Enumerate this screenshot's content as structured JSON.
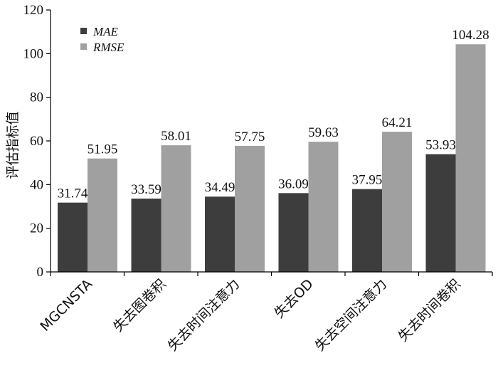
{
  "chart_data": {
    "type": "bar",
    "categories": [
      "MGCNSTA",
      "失去图卷积",
      "失去时间注意力",
      "失去OD",
      "失去空间注意力",
      "失去时间卷积"
    ],
    "series": [
      {
        "name": "MAE",
        "color": "#3d3d3d",
        "values": [
          31.74,
          33.59,
          34.49,
          36.09,
          37.95,
          53.93
        ]
      },
      {
        "name": "RMSE",
        "color": "#a0a0a0",
        "values": [
          51.95,
          58.01,
          57.75,
          59.63,
          64.21,
          104.28
        ]
      }
    ],
    "value_labels": [
      [
        "31.74",
        "33.59",
        "34.49",
        "36.09",
        "37.95",
        "53.93"
      ],
      [
        "51.95",
        "58.01",
        "57.75",
        "59.63",
        "64.21",
        "104.28"
      ]
    ],
    "title": "",
    "xlabel": "",
    "ylabel": "评估指标值",
    "ylim": [
      0,
      120
    ],
    "yticks": [
      0,
      20,
      40,
      60,
      80,
      100,
      120
    ],
    "grid": false,
    "legend_position": "top-left"
  }
}
